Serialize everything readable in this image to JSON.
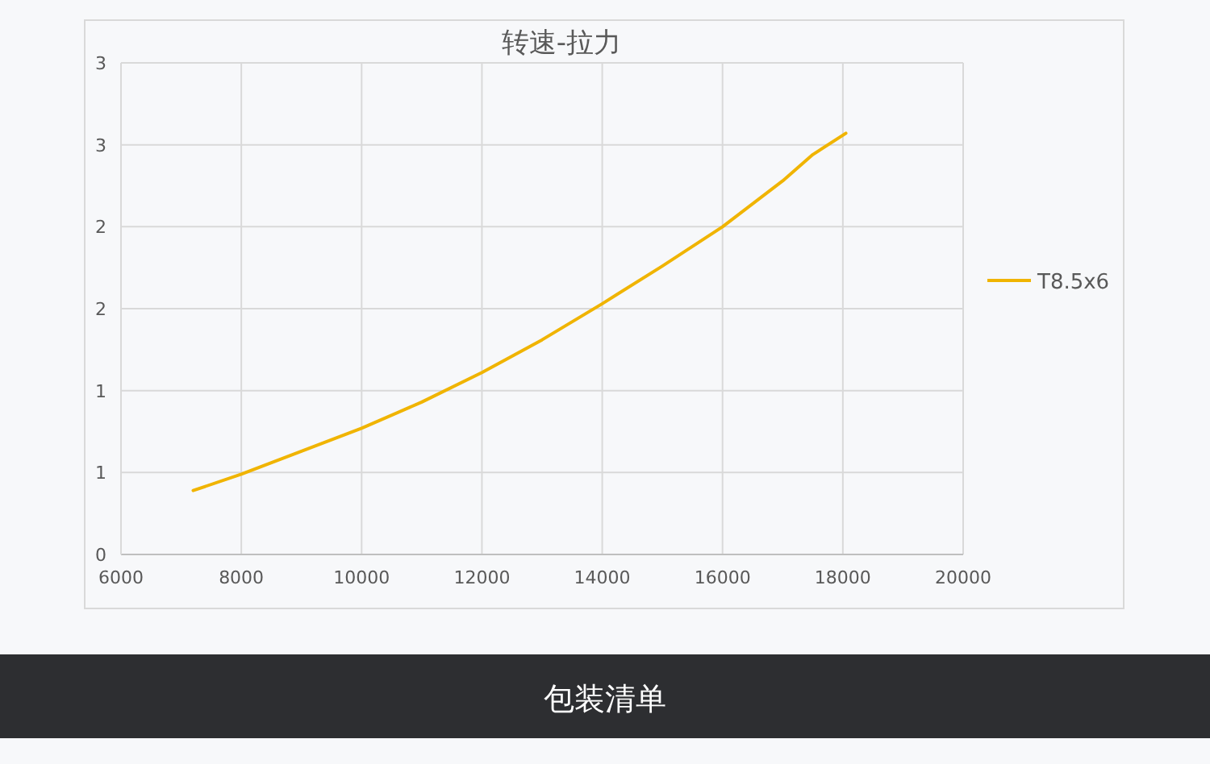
{
  "chart_data": {
    "type": "line",
    "title": "转速-拉力",
    "x": [
      7200,
      8000,
      9000,
      10000,
      11000,
      12000,
      13000,
      14000,
      15000,
      16000,
      17000,
      17500,
      18050
    ],
    "series": [
      {
        "name": "T8.5x6",
        "color": "#f0b400",
        "values": [
          0.39,
          0.49,
          0.63,
          0.77,
          0.93,
          1.11,
          1.31,
          1.53,
          1.76,
          2.0,
          2.28,
          2.44,
          2.57
        ]
      }
    ],
    "xlim": [
      6000,
      20000
    ],
    "xticks": [
      6000,
      8000,
      10000,
      12000,
      14000,
      16000,
      18000,
      20000
    ],
    "ylim": [
      0,
      3
    ],
    "yticks": [
      0,
      {
        "value": 0.5,
        "label": "1"
      },
      1,
      {
        "value": 1.5,
        "label": "2"
      },
      2,
      {
        "value": 2.5,
        "label": "3"
      },
      3
    ],
    "grid": true,
    "legend": "right",
    "marker": "none",
    "line_style": "solid",
    "annotations": [
      "包装清单"
    ]
  }
}
